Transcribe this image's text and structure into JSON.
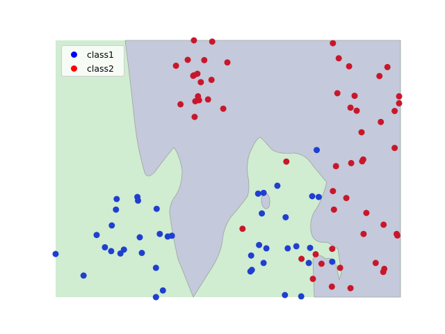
{
  "chart_data": {
    "type": "scatter",
    "title": "",
    "xlabel": "",
    "ylabel": "",
    "xlim": [
      0,
      100
    ],
    "ylim": [
      0,
      100
    ],
    "axes_visible": false,
    "grid": false,
    "legend_position": "top-left",
    "background_regions": {
      "class1_region_color": "#c4c9db",
      "class2_region_color": "#d0ecd1",
      "boundary_color": "#9aa59a"
    },
    "series": [
      {
        "name": "class1",
        "color": "#1f3fd0",
        "legend_color": "#0000ff",
        "x": [
          0.0,
          8.1,
          11.9,
          14.3,
          16.3,
          17.5,
          17.7,
          16.1,
          18.8,
          19.8,
          23.7,
          23.9,
          24.4,
          25.0,
          29.3,
          29.1,
          31.1,
          32.5,
          33.7,
          29.1,
          30.2,
          29.1,
          56.5,
          56.9,
          56.7,
          59.0,
          61.1,
          59.8,
          58.7,
          60.3,
          64.3,
          66.7,
          69.8,
          75.7,
          73.8,
          67.3,
          66.5,
          71.2,
          74.4,
          76.3,
          80.2,
          73.4,
          60.3
        ],
        "y": [
          16.8,
          8.4,
          24.2,
          19.4,
          27.9,
          34.1,
          38.2,
          17.9,
          17.0,
          18.5,
          39.0,
          37.6,
          23.3,
          17.2,
          34.4,
          11.4,
          2.6,
          23.6,
          23.9,
          0.0,
          24.6,
          0.0,
          10.0,
          10.6,
          16.2,
          20.3,
          19.0,
          32.6,
          40.3,
          40.6,
          43.4,
          31.1,
          19.8,
          57.3,
          19.2,
          19.0,
          0.8,
          0.3,
          39.3,
          39.0,
          13.8,
          13.3,
          13.3
        ]
      },
      {
        "name": "class2",
        "color": "#c8172b",
        "legend_color": "#ff0000",
        "x": [
          40.1,
          45.4,
          38.3,
          43.1,
          40.1,
          39.9,
          41.1,
          42.1,
          41.3,
          45.2,
          36.2,
          34.9,
          40.5,
          41.6,
          44.2,
          40.3,
          48.6,
          54.2,
          49.8,
          66.9,
          80.4,
          82.1,
          85.1,
          81.7,
          86.7,
          85.5,
          87.3,
          93.9,
          96.2,
          99.6,
          99.6,
          94.3,
          98.3,
          98.3,
          88.7,
          85.7,
          89.2,
          88.9,
          81.3,
          80.4,
          84.3,
          80.7,
          90.1,
          95.1,
          98.9,
          89.3,
          99.1,
          95.3,
          71.3,
          75.4,
          80.2,
          82.5,
          95.0,
          92.8,
          85.5,
          80.1,
          74.6,
          77.1
        ],
        "y": [
          100.0,
          99.5,
          92.4,
          92.3,
          86.4,
          86.2,
          87.0,
          83.7,
          78.2,
          84.6,
          75.1,
          90.1,
          76.3,
          76.7,
          77.0,
          70.2,
          73.4,
          26.6,
          91.4,
          52.8,
          98.9,
          93.0,
          89.9,
          79.4,
          78.4,
          73.8,
          72.6,
          86.1,
          89.6,
          75.5,
          78.2,
          68.2,
          72.5,
          58.1,
          64.2,
          52.2,
          53.6,
          52.9,
          51.0,
          41.3,
          38.6,
          34.1,
          32.8,
          28.2,
          24.6,
          24.6,
          24.0,
          11.0,
          14.9,
          16.7,
          18.8,
          11.4,
          9.8,
          13.3,
          3.5,
          4.1,
          7.1,
          13.0
        ]
      }
    ]
  },
  "legend": {
    "items": [
      {
        "label": "class1",
        "color": "#0000ff"
      },
      {
        "label": "class2",
        "color": "#ff0000"
      }
    ]
  }
}
